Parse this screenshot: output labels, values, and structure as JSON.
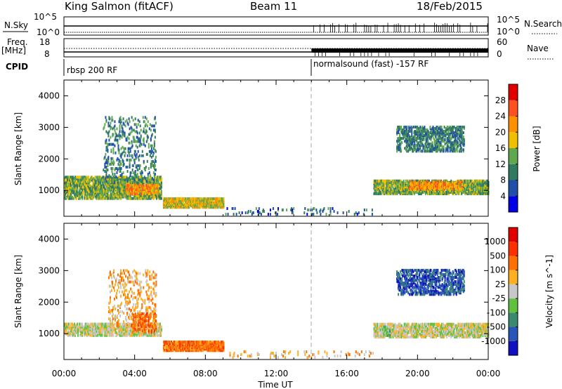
{
  "header": {
    "station": "King Salmon (fitACF)",
    "beam": "Beam 11",
    "date": "18/Feb/2015"
  },
  "status_panels": {
    "nsky_label": "N.Sky",
    "nsky_ticks": [
      "10^5",
      "10^0"
    ],
    "nsearch_label": "N.Search",
    "nsearch_ticks": [
      "10^5",
      "10^0"
    ],
    "freq_label": "Freq.",
    "freq_unit": "[MHz]",
    "freq_ticks": [
      "18",
      "8"
    ],
    "nave_label": "Nave",
    "nave_ticks": [
      "60",
      "0"
    ],
    "cpid_label": "CPID",
    "cpid_modes": [
      {
        "text": "rbsp 200 RF",
        "start_hour": 0
      },
      {
        "text": "normalsound (fast) -157 RF",
        "start_hour": 14
      }
    ]
  },
  "x_axis": {
    "label": "Time UT",
    "ticks": [
      "00:00",
      "04:00",
      "08:00",
      "12:00",
      "16:00",
      "20:00",
      "00:00"
    ],
    "range_hours": [
      0,
      24
    ],
    "mode_change_hour": 14
  },
  "chart_data": [
    {
      "type": "heatmap",
      "panel": "power",
      "ylabel": "Slant Range [km]",
      "yticks": [
        "1000",
        "2000",
        "3000",
        "4000"
      ],
      "ylim": [
        180,
        4500
      ],
      "colorbar": {
        "label": "Power [dB]",
        "ticks": [
          "4",
          "8",
          "12",
          "16",
          "20",
          "24",
          "28"
        ],
        "range": [
          0,
          32
        ],
        "colors": [
          "#0000e6",
          "#1f4fa8",
          "#2f7a60",
          "#60a850",
          "#f0c000",
          "#ff9000",
          "#ff5020",
          "#e00000"
        ]
      },
      "regions": [
        {
          "t0": 0.0,
          "t1": 5.5,
          "r0": 700,
          "r1": 1400,
          "level": 12,
          "density": 0.55
        },
        {
          "t0": 2.2,
          "t1": 5.2,
          "r0": 1200,
          "r1": 3300,
          "level": 8,
          "density": 0.13
        },
        {
          "t0": 3.5,
          "t1": 5.3,
          "r0": 850,
          "r1": 1150,
          "level": 20,
          "density": 0.45
        },
        {
          "t0": 5.6,
          "t1": 9.0,
          "r0": 420,
          "r1": 720,
          "level": 16,
          "density": 0.75
        },
        {
          "t0": 9.0,
          "t1": 17.5,
          "r0": 200,
          "r1": 400,
          "level": 6,
          "density": 0.07
        },
        {
          "t0": 17.5,
          "t1": 24.0,
          "r0": 850,
          "r1": 1300,
          "level": 12,
          "density": 0.6
        },
        {
          "t0": 18.8,
          "t1": 22.6,
          "r0": 2200,
          "r1": 3000,
          "level": 8,
          "density": 0.4
        },
        {
          "t0": 19.5,
          "t1": 22.5,
          "r0": 1000,
          "r1": 1250,
          "level": 20,
          "density": 0.45
        }
      ]
    },
    {
      "type": "heatmap",
      "panel": "velocity",
      "ylabel": "Slant Range [km]",
      "yticks": [
        "1000",
        "2000",
        "3000",
        "4000"
      ],
      "ylim": [
        180,
        4500
      ],
      "colorbar": {
        "label": "Velocity [m s^-1]",
        "ticks": [
          "1000",
          "500",
          "100",
          "25",
          "-25",
          "-100",
          "-500",
          "-1000"
        ],
        "colors": [
          "#1010c0",
          "#2a55b8",
          "#3a8a70",
          "#60c040",
          "#c8c8c8",
          "#ffb020",
          "#ff7000",
          "#ff3000",
          "#e00000"
        ]
      },
      "regions": [
        {
          "t0": 0.0,
          "t1": 5.5,
          "r0": 900,
          "r1": 1300,
          "level": 4,
          "density": 0.55
        },
        {
          "t0": 2.5,
          "t1": 5.2,
          "r0": 1200,
          "r1": 3000,
          "level": 5,
          "density": 0.13
        },
        {
          "t0": 3.8,
          "t1": 5.2,
          "r0": 1000,
          "r1": 1600,
          "level": 6,
          "density": 0.35
        },
        {
          "t0": 5.6,
          "t1": 9.0,
          "r0": 420,
          "r1": 720,
          "level": 6,
          "density": 0.75
        },
        {
          "t0": 9.0,
          "t1": 17.5,
          "r0": 200,
          "r1": 400,
          "level": 5,
          "density": 0.07
        },
        {
          "t0": 17.5,
          "t1": 24.0,
          "r0": 850,
          "r1": 1300,
          "level": 4,
          "density": 0.6
        },
        {
          "t0": 18.8,
          "t1": 22.6,
          "r0": 2200,
          "r1": 3000,
          "level": 1,
          "density": 0.4
        },
        {
          "t0": 18.0,
          "t1": 18.4,
          "r0": 900,
          "r1": 1200,
          "level": 3,
          "density": 0.6
        }
      ]
    }
  ]
}
